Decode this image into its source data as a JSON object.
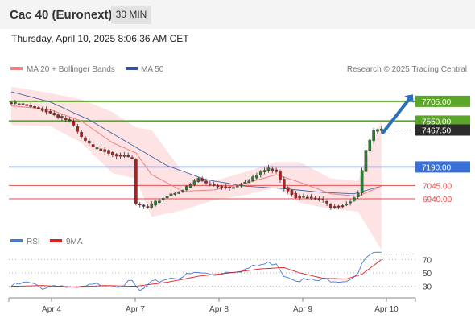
{
  "header": {
    "title": "Cac 40 (Euronext)",
    "timeframe": "30 MIN"
  },
  "timestamp": "Thursday, April 10, 2025 8:06:36 AM CET",
  "legend": {
    "ma20": "MA 20 + Bollinger Bands",
    "ma50": "MA 50",
    "credit": "Research © 2025 Trading Central"
  },
  "rsi_legend": {
    "rsi": "RSI",
    "ma9": "9MA"
  },
  "colors": {
    "resistance": "#5ba52a",
    "pivot": "#3a6fd8",
    "support": "#e05050",
    "ma20": "#f08080",
    "ma50": "#34579c",
    "rsi": "#4a78d0",
    "rsi_ma": "#e02020",
    "band_fill": "#fde3e3"
  },
  "chart_data": [
    {
      "type": "line",
      "title": "Cac 40 (Euronext)",
      "categories": [
        "Apr 4",
        "Apr 7",
        "Apr 8",
        "Apr 9",
        "Apr 10"
      ],
      "ylim": [
        6700,
        7900
      ],
      "last_price": "7467.50",
      "levels": [
        {
          "role": "resistance",
          "value": 7705.0,
          "label": "7705.00"
        },
        {
          "role": "resistance",
          "value": 7550.0,
          "label": "7550.00"
        },
        {
          "role": "pivot",
          "value": 7190.0,
          "label": "7190.00"
        },
        {
          "role": "support",
          "value": 7045.0,
          "label": "7045.00"
        },
        {
          "role": "support",
          "value": 6940.0,
          "label": "6940.00"
        }
      ],
      "forecast": {
        "direction": "up",
        "from": 7460,
        "to": 7720
      },
      "price_anchors": [
        [
          0,
          7690
        ],
        [
          3,
          7680
        ],
        [
          5,
          7665
        ],
        [
          8,
          7640
        ],
        [
          11,
          7600
        ],
        [
          15,
          7550
        ],
        [
          18,
          7420
        ],
        [
          21,
          7340
        ],
        [
          24,
          7320
        ],
        [
          26,
          7290
        ],
        [
          29,
          7280
        ],
        [
          31,
          7250
        ],
        [
          32,
          6900
        ],
        [
          35,
          6870
        ],
        [
          38,
          6930
        ],
        [
          41,
          6980
        ],
        [
          44,
          7010
        ],
        [
          46,
          7050
        ],
        [
          48,
          7100
        ],
        [
          50,
          7060
        ],
        [
          53,
          7040
        ],
        [
          56,
          7030
        ],
        [
          58,
          7050
        ],
        [
          61,
          7080
        ],
        [
          64,
          7150
        ],
        [
          66,
          7175
        ],
        [
          68,
          7160
        ],
        [
          70,
          7030
        ],
        [
          73,
          6960
        ],
        [
          76,
          6950
        ],
        [
          79,
          6940
        ],
        [
          82,
          6880
        ],
        [
          85,
          6890
        ],
        [
          87,
          6925
        ],
        [
          89,
          6985
        ],
        [
          91,
          7320
        ],
        [
          93,
          7470
        ],
        [
          95,
          7480
        ]
      ],
      "ma20_anchors": [
        [
          0,
          7670
        ],
        [
          10,
          7640
        ],
        [
          18,
          7550
        ],
        [
          26,
          7380
        ],
        [
          32,
          7300
        ],
        [
          36,
          7130
        ],
        [
          44,
          7000
        ],
        [
          52,
          7010
        ],
        [
          60,
          7060
        ],
        [
          68,
          7130
        ],
        [
          74,
          7070
        ],
        [
          82,
          6980
        ],
        [
          89,
          6960
        ],
        [
          95,
          7040
        ]
      ],
      "bb_upper_anchors": [
        [
          0,
          7820
        ],
        [
          10,
          7770
        ],
        [
          18,
          7720
        ],
        [
          26,
          7620
        ],
        [
          32,
          7500
        ],
        [
          36,
          7480
        ],
        [
          44,
          7150
        ],
        [
          52,
          7080
        ],
        [
          60,
          7150
        ],
        [
          68,
          7230
        ],
        [
          74,
          7230
        ],
        [
          82,
          7100
        ],
        [
          89,
          7080
        ],
        [
          95,
          7560
        ]
      ],
      "bb_lower_anchors": [
        [
          0,
          7520
        ],
        [
          10,
          7510
        ],
        [
          18,
          7380
        ],
        [
          26,
          7140
        ],
        [
          32,
          7100
        ],
        [
          36,
          6800
        ],
        [
          44,
          6850
        ],
        [
          52,
          6930
        ],
        [
          60,
          6970
        ],
        [
          68,
          7030
        ],
        [
          74,
          6910
        ],
        [
          82,
          6860
        ],
        [
          89,
          6840
        ],
        [
          95,
          6540
        ]
      ],
      "ma50_anchors": [
        [
          0,
          7780
        ],
        [
          10,
          7700
        ],
        [
          20,
          7560
        ],
        [
          30,
          7380
        ],
        [
          40,
          7200
        ],
        [
          50,
          7090
        ],
        [
          60,
          7040
        ],
        [
          70,
          7020
        ],
        [
          80,
          6990
        ],
        [
          88,
          6980
        ],
        [
          95,
          7040
        ]
      ]
    },
    {
      "type": "line",
      "title": "RSI",
      "yticks": [
        30,
        50,
        70
      ],
      "ylim": [
        15,
        85
      ],
      "rsi_anchors": [
        [
          0,
          30
        ],
        [
          4,
          35
        ],
        [
          8,
          28
        ],
        [
          12,
          33
        ],
        [
          16,
          25
        ],
        [
          20,
          30
        ],
        [
          24,
          34
        ],
        [
          28,
          32
        ],
        [
          31,
          36
        ],
        [
          33,
          22
        ],
        [
          36,
          34
        ],
        [
          40,
          42
        ],
        [
          44,
          45
        ],
        [
          48,
          50
        ],
        [
          52,
          47
        ],
        [
          56,
          53
        ],
        [
          60,
          55
        ],
        [
          64,
          62
        ],
        [
          68,
          66
        ],
        [
          70,
          47
        ],
        [
          74,
          40
        ],
        [
          78,
          38
        ],
        [
          82,
          40
        ],
        [
          86,
          39
        ],
        [
          89,
          50
        ],
        [
          91,
          72
        ],
        [
          93,
          78
        ],
        [
          95,
          78
        ]
      ],
      "rsi_ma_anchors": [
        [
          0,
          30
        ],
        [
          8,
          31
        ],
        [
          16,
          29
        ],
        [
          24,
          31
        ],
        [
          32,
          30
        ],
        [
          40,
          36
        ],
        [
          48,
          45
        ],
        [
          56,
          50
        ],
        [
          64,
          56
        ],
        [
          70,
          58
        ],
        [
          74,
          50
        ],
        [
          80,
          42
        ],
        [
          86,
          41
        ],
        [
          90,
          48
        ],
        [
          95,
          70
        ]
      ]
    }
  ]
}
